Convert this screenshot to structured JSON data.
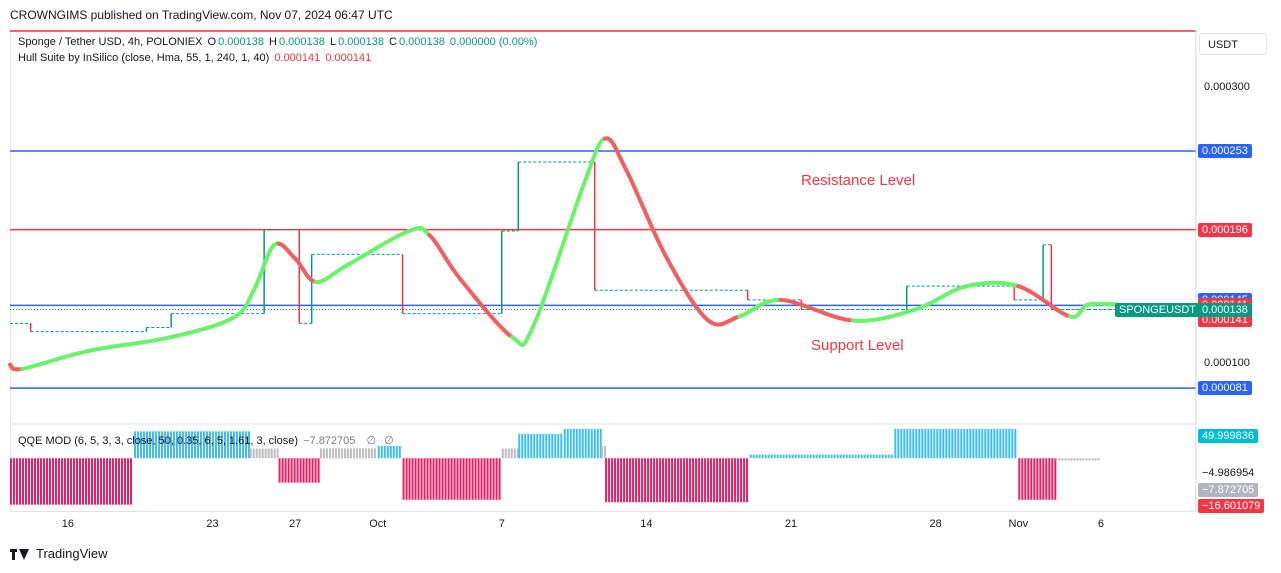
{
  "header": {
    "publisher": "CROWNGIMS published on TradingView.com, Nov 07, 2024 06:47 UTC"
  },
  "legend": {
    "symbol": "Sponge / Tether USD, 4h, POLONIEX",
    "o_label": "O",
    "o": "0.000138",
    "h_label": "H",
    "h": "0.000138",
    "l_label": "L",
    "l": "0.000138",
    "c_label": "C",
    "c": "0.000138",
    "change": "0.000000 (0.00%)",
    "hull": "Hull Suite by InSilico (close, Hma, 55, 1, 240, 1, 40)",
    "hull_v1": "0.000141",
    "hull_v2": "0.000141",
    "qqe": "QQE MOD (6, 5, 3, 3, close, 50, 0.35, 6, 5, 1.61, 3, close)",
    "qqe_v": "−7.872705",
    "qqe_icon1": "∅",
    "qqe_icon2": "∅"
  },
  "currency_button": "USDT",
  "annotations": {
    "resistance": "Resistance Level",
    "support": "Support Level"
  },
  "footer": {
    "brand": "TradingView"
  },
  "colors": {
    "up": "#089981",
    "down": "#f23645",
    "hull_up": "#6af26a",
    "hull_down": "#f25f5f",
    "blue_line": "#2962ff",
    "red_line": "#f23645",
    "qqe_blue": "#3fbfef",
    "qqe_pink": "#e91e63",
    "qqe_grey": "#bdbdbd"
  },
  "chart_data": [
    {
      "type": "line",
      "name": "price",
      "y_axis_ticks": [
        {
          "label": "0.000300",
          "value": 0.0003
        },
        {
          "label": "0.000100",
          "value": 0.0001
        }
      ],
      "ylim": [
        5.5e-05,
        0.00034
      ],
      "x_ticks": [
        "16",
        "23",
        "27",
        "Oct",
        "7",
        "14",
        "21",
        "28",
        "Nov",
        "6"
      ],
      "x_tick_days": [
        0,
        7,
        11,
        15,
        21,
        28,
        35,
        42,
        46,
        50
      ],
      "xlim_days": [
        -2.8,
        54.6
      ],
      "horizontal_lines": [
        {
          "value": 0.00034,
          "color": "#f23645"
        },
        {
          "value": 0.000253,
          "color": "#2962ff",
          "label": "0.000253"
        },
        {
          "value": 0.000196,
          "color": "#f23645",
          "label": "0.000196"
        },
        {
          "value": 0.000141,
          "color": "#2962ff"
        },
        {
          "value": 8.1e-05,
          "color": "#2962ff",
          "label": "0.000081"
        }
      ],
      "price_tags": [
        {
          "label": "0.000145",
          "value": 0.000145,
          "color": "#2962ff"
        },
        {
          "label": "0.000141",
          "value": 0.000141,
          "color": "#f23645"
        },
        {
          "label": "0.000141",
          "value": 0.000141,
          "color": "#f23645",
          "offset": 1
        },
        {
          "label": "0.000138",
          "value": 0.000138,
          "color": "#089981"
        }
      ],
      "symbol_tag": "SPONGEUSDT",
      "last_price": 0.000138,
      "price_steps": [
        {
          "d": -2.8,
          "v": 0.000128
        },
        {
          "d": -1.8,
          "v": 0.000122
        },
        {
          "d": 3.8,
          "v": 0.000125
        },
        {
          "d": 5.0,
          "v": 0.000135
        },
        {
          "d": 9.5,
          "v": 0.000196
        },
        {
          "d": 11.2,
          "v": 0.000128
        },
        {
          "d": 11.8,
          "v": 0.000178
        },
        {
          "d": 16.2,
          "v": 0.000135
        },
        {
          "d": 21.0,
          "v": 0.000195
        },
        {
          "d": 21.8,
          "v": 0.000245
        },
        {
          "d": 25.5,
          "v": 0.000152
        },
        {
          "d": 32.9,
          "v": 0.000145
        },
        {
          "d": 35.5,
          "v": 0.000138
        },
        {
          "d": 40.6,
          "v": 0.000155
        },
        {
          "d": 45.8,
          "v": 0.000145
        },
        {
          "d": 47.2,
          "v": 0.000185
        },
        {
          "d": 47.6,
          "v": 0.000138
        },
        {
          "d": 49.4,
          "v": 0.000138
        }
      ],
      "hull": [
        {
          "d": -2.8,
          "v": 9.8e-05
        },
        {
          "d": -2.2,
          "v": 9.5e-05
        },
        {
          "d": 1.0,
          "v": 0.000108
        },
        {
          "d": 5.0,
          "v": 0.000118
        },
        {
          "d": 8.0,
          "v": 0.000132
        },
        {
          "d": 9.0,
          "v": 0.000152
        },
        {
          "d": 10.0,
          "v": 0.000185
        },
        {
          "d": 11.0,
          "v": 0.000175
        },
        {
          "d": 12.0,
          "v": 0.000158
        },
        {
          "d": 13.5,
          "v": 0.00017
        },
        {
          "d": 16.5,
          "v": 0.000195
        },
        {
          "d": 17.5,
          "v": 0.000192
        },
        {
          "d": 19.0,
          "v": 0.00016
        },
        {
          "d": 21.5,
          "v": 0.000118
        },
        {
          "d": 22.5,
          "v": 0.000125
        },
        {
          "d": 25.0,
          "v": 0.00023
        },
        {
          "d": 26.0,
          "v": 0.000262
        },
        {
          "d": 27.0,
          "v": 0.00024
        },
        {
          "d": 29.0,
          "v": 0.000175
        },
        {
          "d": 31.0,
          "v": 0.00013
        },
        {
          "d": 32.5,
          "v": 0.000133
        },
        {
          "d": 34.5,
          "v": 0.000145
        },
        {
          "d": 38.0,
          "v": 0.00013
        },
        {
          "d": 41.0,
          "v": 0.000138
        },
        {
          "d": 43.5,
          "v": 0.000155
        },
        {
          "d": 46.0,
          "v": 0.000155
        },
        {
          "d": 48.5,
          "v": 0.000133
        },
        {
          "d": 49.5,
          "v": 0.000142
        },
        {
          "d": 52.0,
          "v": 0.00014
        }
      ],
      "hull_down_ranges": [
        [
          -2.8,
          -2.2
        ],
        [
          10.2,
          12.0
        ],
        [
          17.5,
          21.5
        ],
        [
          26.0,
          32.5
        ],
        [
          34.5,
          38.0
        ],
        [
          46.0,
          48.5
        ]
      ]
    },
    {
      "type": "bar",
      "name": "QQE MOD",
      "y_axis_labels": [
        {
          "label": "49.999836",
          "value": 49.999836,
          "color": "#00bcd4"
        },
        {
          "label": "−4.986954",
          "value": -4.986954,
          "color": ""
        },
        {
          "label": "−7.872705",
          "value": -7.872705,
          "color": "#b2b5be"
        },
        {
          "label": "−16.601079",
          "value": -16.601079,
          "color": "#f23645"
        }
      ],
      "ylim": [
        -22,
        14
      ],
      "segments": [
        {
          "from": -2.8,
          "to": 3.2,
          "value": -19,
          "color": "#e91e63"
        },
        {
          "from": 3.2,
          "to": 8.8,
          "value": 11,
          "color": "#3fbfef"
        },
        {
          "from": 8.8,
          "to": 10.2,
          "value": 4,
          "color": "#bdbdbd"
        },
        {
          "from": 10.2,
          "to": 12.2,
          "value": -10,
          "color": "#e91e63"
        },
        {
          "from": 12.2,
          "to": 15.0,
          "value": 4,
          "color": "#bdbdbd"
        },
        {
          "from": 15.0,
          "to": 16.2,
          "value": 5,
          "color": "#3fbfef"
        },
        {
          "from": 16.2,
          "to": 21.0,
          "value": -17,
          "color": "#e91e63"
        },
        {
          "from": 21.0,
          "to": 21.8,
          "value": 4,
          "color": "#bdbdbd"
        },
        {
          "from": 21.8,
          "to": 24.0,
          "value": 10,
          "color": "#3fbfef"
        },
        {
          "from": 24.0,
          "to": 25.8,
          "value": 12,
          "color": "#3fbfef"
        },
        {
          "from": 25.8,
          "to": 26.0,
          "value": 5,
          "color": "#bdbdbd"
        },
        {
          "from": 26.0,
          "to": 33.0,
          "value": -18,
          "color": "#e91e63"
        },
        {
          "from": 33.0,
          "to": 40.0,
          "value": 1.5,
          "color": "#3fbfef"
        },
        {
          "from": 40.0,
          "to": 46.0,
          "value": 12,
          "color": "#3fbfef"
        },
        {
          "from": 46.0,
          "to": 47.8,
          "value": -17,
          "color": "#e91e63"
        },
        {
          "from": 47.8,
          "to": 50.0,
          "value": -1,
          "color": "#bdbdbd"
        }
      ]
    }
  ]
}
